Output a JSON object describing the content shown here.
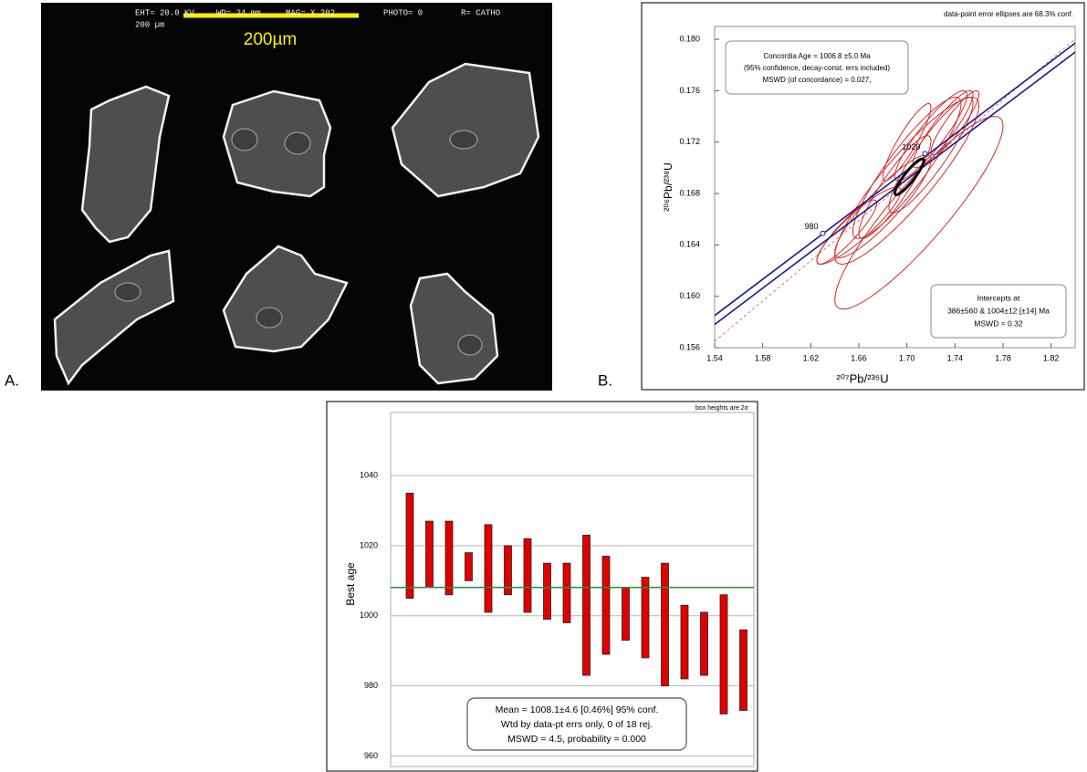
{
  "chart_data": [
    {
      "type": "image",
      "panel_label": "A.",
      "header": [
        "EHT= 20.0 KV",
        "WD= 24  mm",
        "MAG= X 202.",
        "PHOTO= 0",
        "R= CATHO"
      ],
      "scale_text": "200 µm",
      "scale_bar_label": "200µm"
    },
    {
      "type": "concordia",
      "panel_label": "B.",
      "note": "data-point error ellipses are 68.3% conf.",
      "x_label": "²⁰⁷Pb/²³⁵U",
      "y_label": "²⁰⁶Pb/²³⁸U",
      "xlim": [
        1.54,
        1.84
      ],
      "ylim": [
        0.156,
        0.181
      ],
      "xticks": [
        1.54,
        1.58,
        1.62,
        1.66,
        {
          "value": 1.7,
          "label": "1.70"
        },
        1.74,
        1.78,
        1.82
      ],
      "yticks": [
        0.156,
        {
          "value": 0.16,
          "label": "0.160"
        },
        0.164,
        0.168,
        0.172,
        0.176,
        {
          "value": 0.18,
          "label": "0.180"
        }
      ],
      "concordia_lines": [
        {
          "color": "#1a1a8c",
          "x": [
            1.54,
            1.84
          ],
          "y": [
            0.1585,
            0.1797
          ]
        },
        {
          "color": "#1a1a8c",
          "x": [
            1.54,
            1.84
          ],
          "y": [
            0.1578,
            0.179
          ]
        }
      ],
      "discordia": {
        "color": "#e07070",
        "x": [
          1.54,
          1.84
        ],
        "y": [
          0.1565,
          0.18
        ]
      },
      "concordia_ages": [
        {
          "age": 980,
          "x": 1.63,
          "y": 0.1649
        },
        {
          "age": 1020,
          "x": 1.715,
          "y": 0.1711
        }
      ],
      "error_correlation": 0.9,
      "ellipse_color": "#d42a2a",
      "ellipses": [
        {
          "x": 1.7,
          "y": 0.169,
          "x_err": 0.06,
          "y_err": 0.0065
        },
        {
          "x": 1.71,
          "y": 0.1665,
          "x_err": 0.07,
          "y_err": 0.0075
        },
        {
          "x": 1.66,
          "y": 0.1655,
          "x_err": 0.035,
          "y_err": 0.003
        },
        {
          "x": 1.65,
          "y": 0.165,
          "x_err": 0.025,
          "y_err": 0.0025
        },
        {
          "x": 1.69,
          "y": 0.1685,
          "x_err": 0.03,
          "y_err": 0.004
        },
        {
          "x": 1.72,
          "y": 0.171,
          "x_err": 0.035,
          "y_err": 0.0045
        },
        {
          "x": 1.73,
          "y": 0.173,
          "x_err": 0.025,
          "y_err": 0.003
        },
        {
          "x": 1.7,
          "y": 0.172,
          "x_err": 0.02,
          "y_err": 0.003
        },
        {
          "x": 1.72,
          "y": 0.1725,
          "x_err": 0.03,
          "y_err": 0.0035
        },
        {
          "x": 1.68,
          "y": 0.167,
          "x_err": 0.04,
          "y_err": 0.004
        },
        {
          "x": 1.74,
          "y": 0.1735,
          "x_err": 0.02,
          "y_err": 0.0025
        },
        {
          "x": 1.7,
          "y": 0.17,
          "x_err": 0.045,
          "y_err": 0.0055
        }
      ],
      "concordia_age_ellipse": {
        "x": 1.702,
        "y": 0.1693,
        "x_err": 0.012,
        "y_err": 0.0014
      },
      "concordia_box": [
        "Concordia Age = 1006.8 ±5.0 Ma",
        "(95% confidence, decay-const. errs included)",
        "MSWD (of concordance) = 0.027,"
      ],
      "intercept_box": [
        "Intercepts at",
        "386±560 & 1004±12  [±14]  Ma",
        "MSWD = 0.32"
      ]
    },
    {
      "type": "weighted-mean",
      "note": "box heights are 2σ",
      "y_label": "Best age",
      "ylim": [
        957,
        1058
      ],
      "yticks": [
        960,
        980,
        1000,
        1020,
        1040
      ],
      "grid": true,
      "color": "#e00000",
      "values": [
        1020,
        1017.5,
        1016.5,
        1014,
        1013.5,
        1013,
        1011.5,
        1007,
        1006.5,
        1003,
        1003,
        1000.5,
        999.5,
        997.5,
        992.5,
        992,
        989,
        984.5
      ],
      "errors": [
        15,
        9.5,
        10.5,
        4,
        12.5,
        7,
        10.5,
        8,
        8.5,
        20,
        14,
        7.5,
        11.5,
        17.5,
        10.5,
        9,
        17,
        11.5
      ],
      "mean": 1008.1,
      "mean_color": "#2e8b2e",
      "stats_box": [
        "Mean = 1008.1±4.6  [0.46%]  95% conf.",
        "Wtd by data-pt errs only, 0 of 18 rej.",
        "MSWD = 4.5, probability = 0.000"
      ]
    }
  ]
}
